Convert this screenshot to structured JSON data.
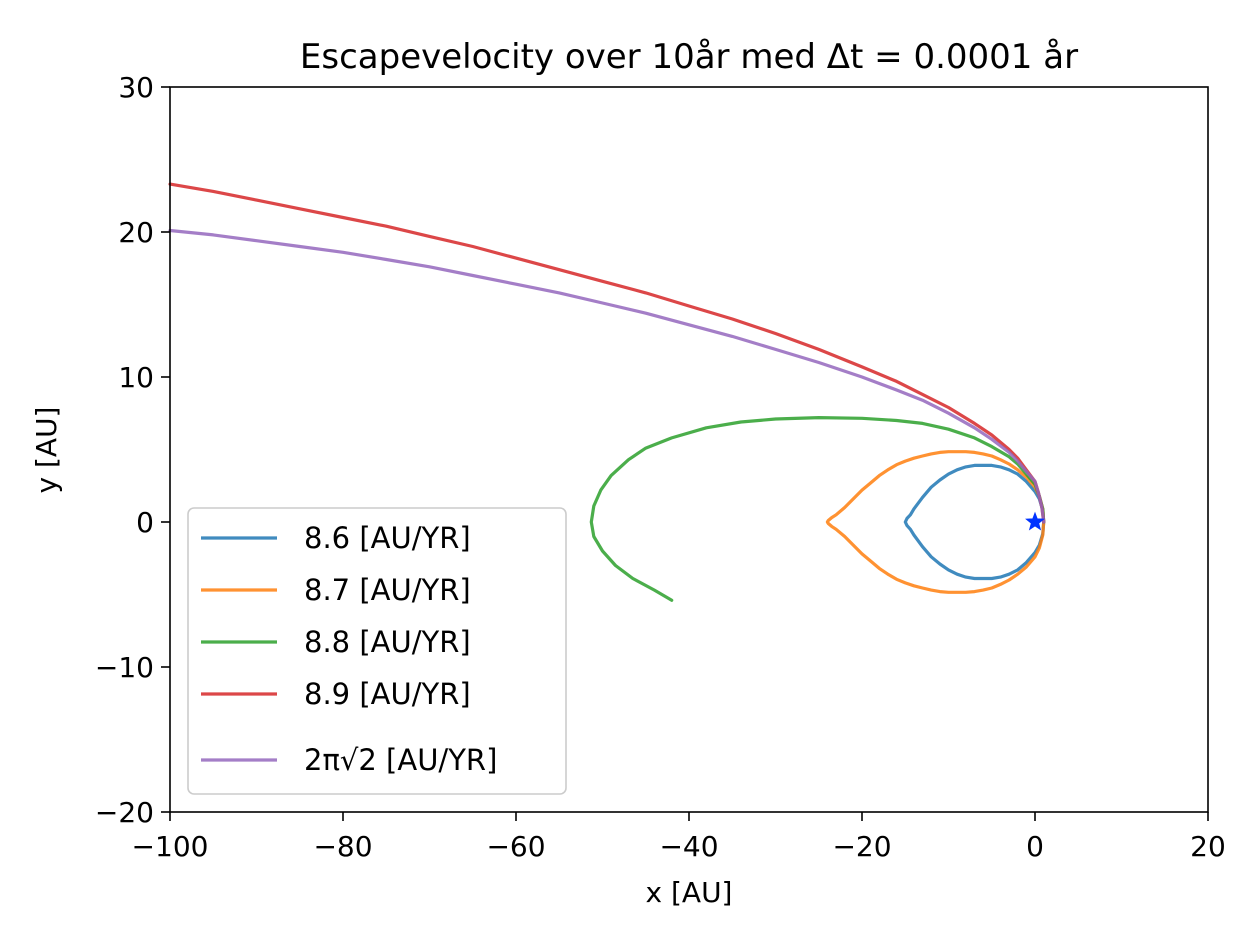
{
  "chart_data": {
    "type": "line",
    "title": "Escapevelocity over 10år med Δt = 0.0001 år",
    "xlabel": "x [AU]",
    "ylabel": "y [AU]",
    "xlim": [
      -100,
      20
    ],
    "ylim": [
      -20,
      30
    ],
    "xticks": [
      -100,
      -80,
      -60,
      -40,
      -20,
      0,
      20
    ],
    "yticks": [
      -20,
      -10,
      0,
      10,
      20,
      30
    ],
    "xtick_labels": [
      "−100",
      "−80",
      "−60",
      "−40",
      "−20",
      "0",
      "20"
    ],
    "ytick_labels": [
      "−20",
      "−10",
      "0",
      "10",
      "20",
      "30"
    ],
    "grid": false,
    "legend_position": "lower-left",
    "series": [
      {
        "name": "8.6 [AU/YR]",
        "color": "#1f77b4",
        "x": [
          1,
          0.9,
          0.5,
          0,
          -1,
          -2,
          -3,
          -4,
          -5,
          -6,
          -7,
          -8,
          -9,
          -10,
          -11,
          -12,
          -13,
          -14,
          -14.4,
          -14.8,
          -15,
          -14.8,
          -14.4,
          -14,
          -13,
          -12,
          -11,
          -10,
          -9,
          -8,
          -7,
          -6,
          -5,
          -4,
          -3,
          -2,
          -1,
          0,
          0.5,
          0.9,
          1
        ],
        "y": [
          0,
          0.8,
          1.6,
          2.1,
          2.8,
          3.3,
          3.6,
          3.8,
          3.9,
          3.9,
          3.9,
          3.8,
          3.6,
          3.3,
          2.9,
          2.4,
          1.7,
          0.9,
          0.5,
          0.25,
          0,
          -0.25,
          -0.5,
          -0.9,
          -1.7,
          -2.4,
          -2.9,
          -3.3,
          -3.6,
          -3.8,
          -3.9,
          -3.9,
          -3.9,
          -3.8,
          -3.6,
          -3.3,
          -2.8,
          -2.1,
          -1.6,
          -0.8,
          0
        ]
      },
      {
        "name": "8.7 [AU/YR]",
        "color": "#ff7f0e",
        "x": [
          1,
          0.9,
          0.5,
          0,
          -1,
          -2,
          -3,
          -4,
          -5,
          -6,
          -7,
          -8,
          -9,
          -10,
          -11,
          -12,
          -13,
          -14,
          -15,
          -16,
          -17,
          -18,
          -19,
          -20,
          -21,
          -22,
          -23,
          -23.5,
          -23.9,
          -24,
          -23.9,
          -23.5,
          -23,
          -22,
          -21,
          -20,
          -19,
          -18,
          -17,
          -16,
          -15,
          -14,
          -13,
          -12,
          -11,
          -10,
          -9,
          -8,
          -7,
          -6,
          -5,
          -4,
          -3,
          -2,
          -1,
          0,
          0.5,
          0.9,
          1
        ],
        "y": [
          0,
          0.9,
          1.8,
          2.4,
          3.1,
          3.6,
          4.0,
          4.3,
          4.55,
          4.7,
          4.8,
          4.85,
          4.85,
          4.85,
          4.8,
          4.7,
          4.55,
          4.4,
          4.2,
          3.95,
          3.6,
          3.2,
          2.7,
          2.2,
          1.6,
          1.0,
          0.5,
          0.3,
          0.1,
          0,
          -0.1,
          -0.3,
          -0.5,
          -1.0,
          -1.6,
          -2.2,
          -2.7,
          -3.2,
          -3.6,
          -3.95,
          -4.2,
          -4.4,
          -4.55,
          -4.7,
          -4.8,
          -4.85,
          -4.85,
          -4.85,
          -4.8,
          -4.7,
          -4.55,
          -4.3,
          -4.0,
          -3.6,
          -3.1,
          -2.4,
          -1.8,
          -0.9,
          0
        ]
      },
      {
        "name": "8.8 [AU/YR]",
        "color": "#2ca02c",
        "x": [
          1,
          0.9,
          0.5,
          0,
          -1,
          -2,
          -3,
          -5,
          -7,
          -10,
          -13,
          -16,
          -20,
          -25,
          -30,
          -34,
          -38,
          -42,
          -45,
          -47,
          -49,
          -50.2,
          -51,
          -51.3,
          -51,
          -50,
          -48.5,
          -46.5,
          -44,
          -42
        ],
        "y": [
          0,
          0.9,
          1.8,
          2.6,
          3.3,
          4.0,
          4.5,
          5.2,
          5.8,
          6.4,
          6.8,
          7.0,
          7.15,
          7.2,
          7.1,
          6.9,
          6.5,
          5.8,
          5.1,
          4.3,
          3.2,
          2.2,
          1.1,
          0,
          -1.0,
          -2.0,
          -3.0,
          -3.9,
          -4.7,
          -5.4
        ]
      },
      {
        "name": "8.9 [AU/YR]",
        "color": "#d62728",
        "x": [
          1,
          0.8,
          0.4,
          0,
          -1,
          -2,
          -3,
          -5,
          -7,
          -10,
          -13,
          -16,
          -20,
          -25,
          -30,
          -35,
          -40,
          -45,
          -50,
          -55,
          -60,
          -65,
          -70,
          -75,
          -80,
          -85,
          -90,
          -95,
          -100
        ],
        "y": [
          0,
          1.0,
          2.0,
          2.8,
          3.6,
          4.4,
          5.0,
          6.0,
          6.8,
          7.9,
          8.8,
          9.7,
          10.7,
          11.9,
          13.0,
          14.0,
          14.9,
          15.8,
          16.6,
          17.4,
          18.2,
          19.0,
          19.7,
          20.4,
          21.0,
          21.6,
          22.2,
          22.8,
          23.3
        ]
      },
      {
        "name": "2π√2 [AU/YR]",
        "color": "#9467bd",
        "x": [
          1,
          0.8,
          0.4,
          0,
          -1,
          -2,
          -3,
          -5,
          -7,
          -10,
          -13,
          -16,
          -20,
          -25,
          -30,
          -35,
          -40,
          -45,
          -50,
          -55,
          -60,
          -65,
          -70,
          -75,
          -80,
          -85,
          -90,
          -95,
          -100
        ],
        "y": [
          0,
          1.0,
          2.0,
          2.8,
          3.5,
          4.2,
          4.8,
          5.7,
          6.5,
          7.5,
          8.4,
          9.1,
          10.0,
          11.0,
          11.9,
          12.8,
          13.6,
          14.4,
          15.1,
          15.8,
          16.4,
          17.0,
          17.6,
          18.1,
          18.6,
          19.0,
          19.4,
          19.8,
          20.1
        ]
      }
    ],
    "marker": {
      "x": 0,
      "y": 0,
      "symbol": "star",
      "color": "#0033ff"
    }
  }
}
